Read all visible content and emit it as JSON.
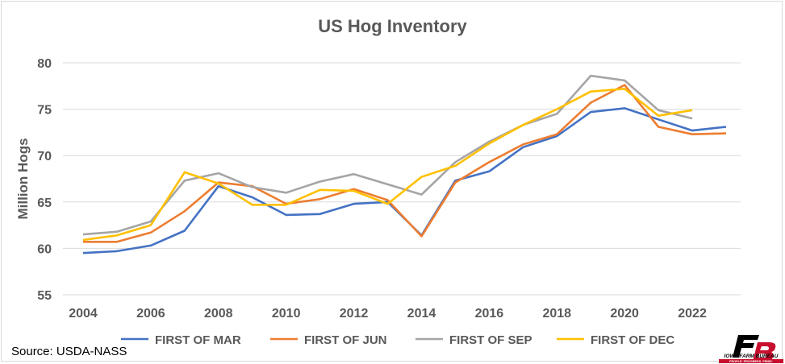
{
  "chart_data": {
    "type": "line",
    "title": "US Hog Inventory",
    "xlabel": "",
    "ylabel": "Million Hogs",
    "x": [
      2004,
      2005,
      2006,
      2007,
      2008,
      2009,
      2010,
      2011,
      2012,
      2013,
      2014,
      2015,
      2016,
      2017,
      2018,
      2019,
      2020,
      2021,
      2022,
      2023
    ],
    "x_ticks": [
      2004,
      2006,
      2008,
      2010,
      2012,
      2014,
      2016,
      2018,
      2020,
      2022
    ],
    "y_ticks": [
      55,
      60,
      65,
      70,
      75,
      80
    ],
    "xlim": [
      2004,
      2023
    ],
    "ylim": [
      55,
      80
    ],
    "grid": "horizontal",
    "legend_position": "bottom",
    "series": [
      {
        "name": "FIRST OF MAR",
        "color": "#4472c4",
        "values": [
          59.5,
          59.7,
          60.3,
          61.9,
          66.7,
          65.5,
          63.6,
          63.7,
          64.8,
          65.0,
          61.4,
          67.3,
          68.3,
          70.9,
          72.1,
          74.7,
          75.1,
          73.9,
          72.7,
          73.1
        ]
      },
      {
        "name": "FIRST OF JUN",
        "color": "#ed7d31",
        "values": [
          60.7,
          60.7,
          61.7,
          64.0,
          67.1,
          66.7,
          64.8,
          65.3,
          66.4,
          65.2,
          61.3,
          67.1,
          69.3,
          71.2,
          72.3,
          75.7,
          77.6,
          73.1,
          72.3,
          72.4
        ]
      },
      {
        "name": "FIRST OF SEP",
        "color": "#a5a5a5",
        "values": [
          61.5,
          61.8,
          62.9,
          67.3,
          68.1,
          66.6,
          66.0,
          67.2,
          68.0,
          66.9,
          65.8,
          69.3,
          71.5,
          73.3,
          74.5,
          78.6,
          78.1,
          74.9,
          74.0,
          null
        ]
      },
      {
        "name": "FIRST OF DEC",
        "color": "#ffc000",
        "values": [
          60.9,
          61.4,
          62.5,
          68.2,
          67.0,
          64.7,
          64.7,
          66.3,
          66.2,
          64.8,
          67.7,
          68.9,
          71.3,
          73.3,
          75.0,
          76.9,
          77.2,
          74.3,
          74.9,
          null
        ]
      }
    ]
  },
  "footer": {
    "source": "Source: USDA-NASS",
    "logo_text": "IOWA FARM BUREAU",
    "logo_tagline": "PEOPLE. PROGRESS. PRIDE.",
    "logo_color": "#c8102e"
  }
}
